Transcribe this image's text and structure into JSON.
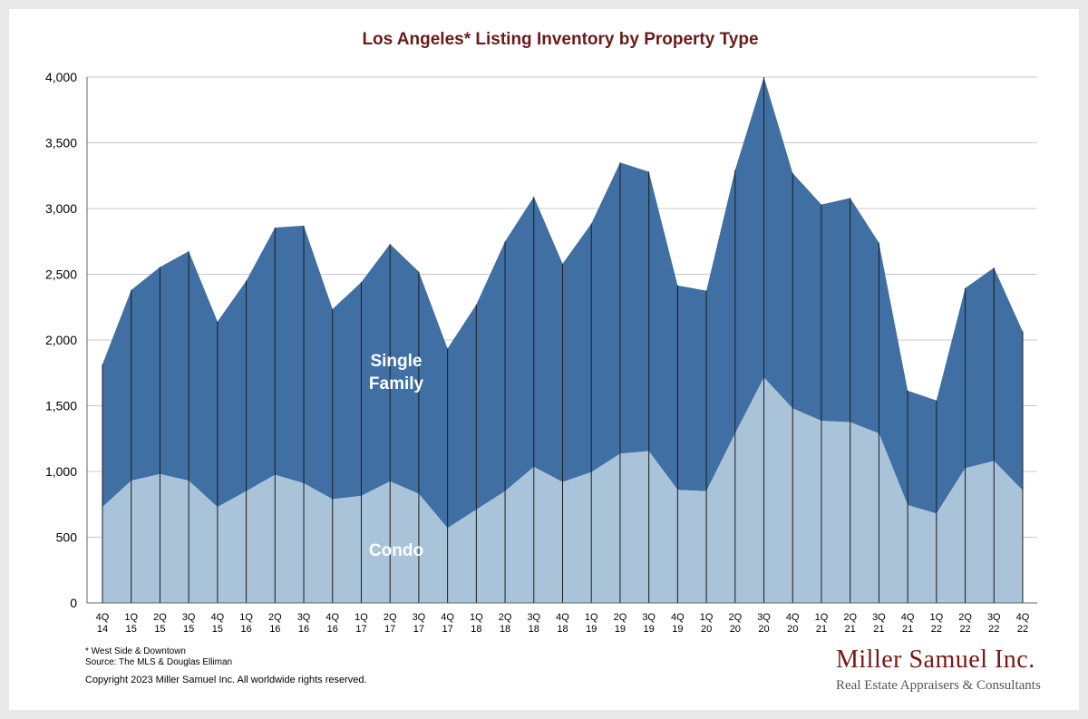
{
  "chart_data": {
    "type": "area",
    "title": "Los Angeles* Listing Inventory by Property Type",
    "categories": [
      "4Q 14",
      "1Q 15",
      "2Q 15",
      "3Q 15",
      "4Q 15",
      "1Q 16",
      "2Q 16",
      "3Q 16",
      "4Q 16",
      "1Q 17",
      "2Q 17",
      "3Q 17",
      "4Q 17",
      "1Q 18",
      "2Q 18",
      "3Q 18",
      "4Q 18",
      "1Q 19",
      "2Q 19",
      "3Q 19",
      "4Q 19",
      "1Q 20",
      "2Q 20",
      "3Q 20",
      "4Q 20",
      "1Q 21",
      "2Q 21",
      "3Q 21",
      "4Q 21",
      "1Q 22",
      "2Q 22",
      "3Q 22",
      "4Q 22"
    ],
    "category_lines": [
      [
        "4Q",
        "14"
      ],
      [
        "1Q",
        "15"
      ],
      [
        "2Q",
        "15"
      ],
      [
        "3Q",
        "15"
      ],
      [
        "4Q",
        "15"
      ],
      [
        "1Q",
        "16"
      ],
      [
        "2Q",
        "16"
      ],
      [
        "3Q",
        "16"
      ],
      [
        "4Q",
        "16"
      ],
      [
        "1Q",
        "17"
      ],
      [
        "2Q",
        "17"
      ],
      [
        "3Q",
        "17"
      ],
      [
        "4Q",
        "17"
      ],
      [
        "1Q",
        "18"
      ],
      [
        "2Q",
        "18"
      ],
      [
        "3Q",
        "18"
      ],
      [
        "4Q",
        "18"
      ],
      [
        "1Q",
        "19"
      ],
      [
        "2Q",
        "19"
      ],
      [
        "3Q",
        "19"
      ],
      [
        "4Q",
        "19"
      ],
      [
        "1Q",
        "20"
      ],
      [
        "2Q",
        "20"
      ],
      [
        "3Q",
        "20"
      ],
      [
        "4Q",
        "20"
      ],
      [
        "1Q",
        "21"
      ],
      [
        "2Q",
        "21"
      ],
      [
        "3Q",
        "21"
      ],
      [
        "4Q",
        "21"
      ],
      [
        "1Q",
        "22"
      ],
      [
        "2Q",
        "22"
      ],
      [
        "3Q",
        "22"
      ],
      [
        "4Q",
        "22"
      ]
    ],
    "stacked": true,
    "series": [
      {
        "name": "Condo",
        "color": "#a9c3d9",
        "values": [
          730,
          930,
          980,
          930,
          730,
          850,
          975,
          910,
          790,
          815,
          925,
          830,
          570,
          710,
          850,
          1035,
          920,
          995,
          1135,
          1155,
          860,
          850,
          1290,
          1715,
          1480,
          1385,
          1375,
          1290,
          745,
          680,
          1025,
          1080,
          855
        ]
      },
      {
        "name": "Single Family",
        "color": "#3f6fa3",
        "values": [
          1085,
          1450,
          1575,
          1745,
          1410,
          1600,
          1880,
          1960,
          1445,
          1625,
          1805,
          1690,
          1365,
          1560,
          1900,
          2055,
          1660,
          1890,
          2215,
          2125,
          1555,
          1525,
          2005,
          2285,
          1790,
          1645,
          1705,
          1450,
          870,
          860,
          1370,
          1470,
          1210
        ]
      }
    ],
    "totals": [
      1815,
      2380,
      2555,
      2675,
      2140,
      2450,
      2855,
      2870,
      2235,
      2440,
      2730,
      2520,
      1935,
      2270,
      2750,
      3090,
      2580,
      2885,
      3350,
      3280,
      2415,
      2375,
      3295,
      4000,
      3270,
      3030,
      3080,
      2740,
      1615,
      1540,
      2395,
      2550,
      2065
    ],
    "yticks": [
      0,
      500,
      1000,
      1500,
      2000,
      2500,
      3000,
      3500,
      4000
    ],
    "ytick_labels": [
      "0",
      "500",
      "1,000",
      "1,500",
      "2,000",
      "2,500",
      "3,000",
      "3,500",
      "4,000"
    ],
    "ylim": [
      0,
      4000
    ],
    "grid": true,
    "xlabel": "",
    "ylabel": "",
    "series_labels": {
      "single_family_line1": "Single",
      "single_family_line2": "Family",
      "condo": "Condo"
    }
  },
  "footnotes": {
    "note": "* West Side & Downtown",
    "source": "Source: The MLS & Douglas Elliman"
  },
  "copyright": "Copyright 2023 Miller Samuel Inc.  All worldwide rights reserved.",
  "brand": {
    "name": "Miller Samuel Inc.",
    "tagline": "Real Estate Appraisers & Consultants"
  }
}
